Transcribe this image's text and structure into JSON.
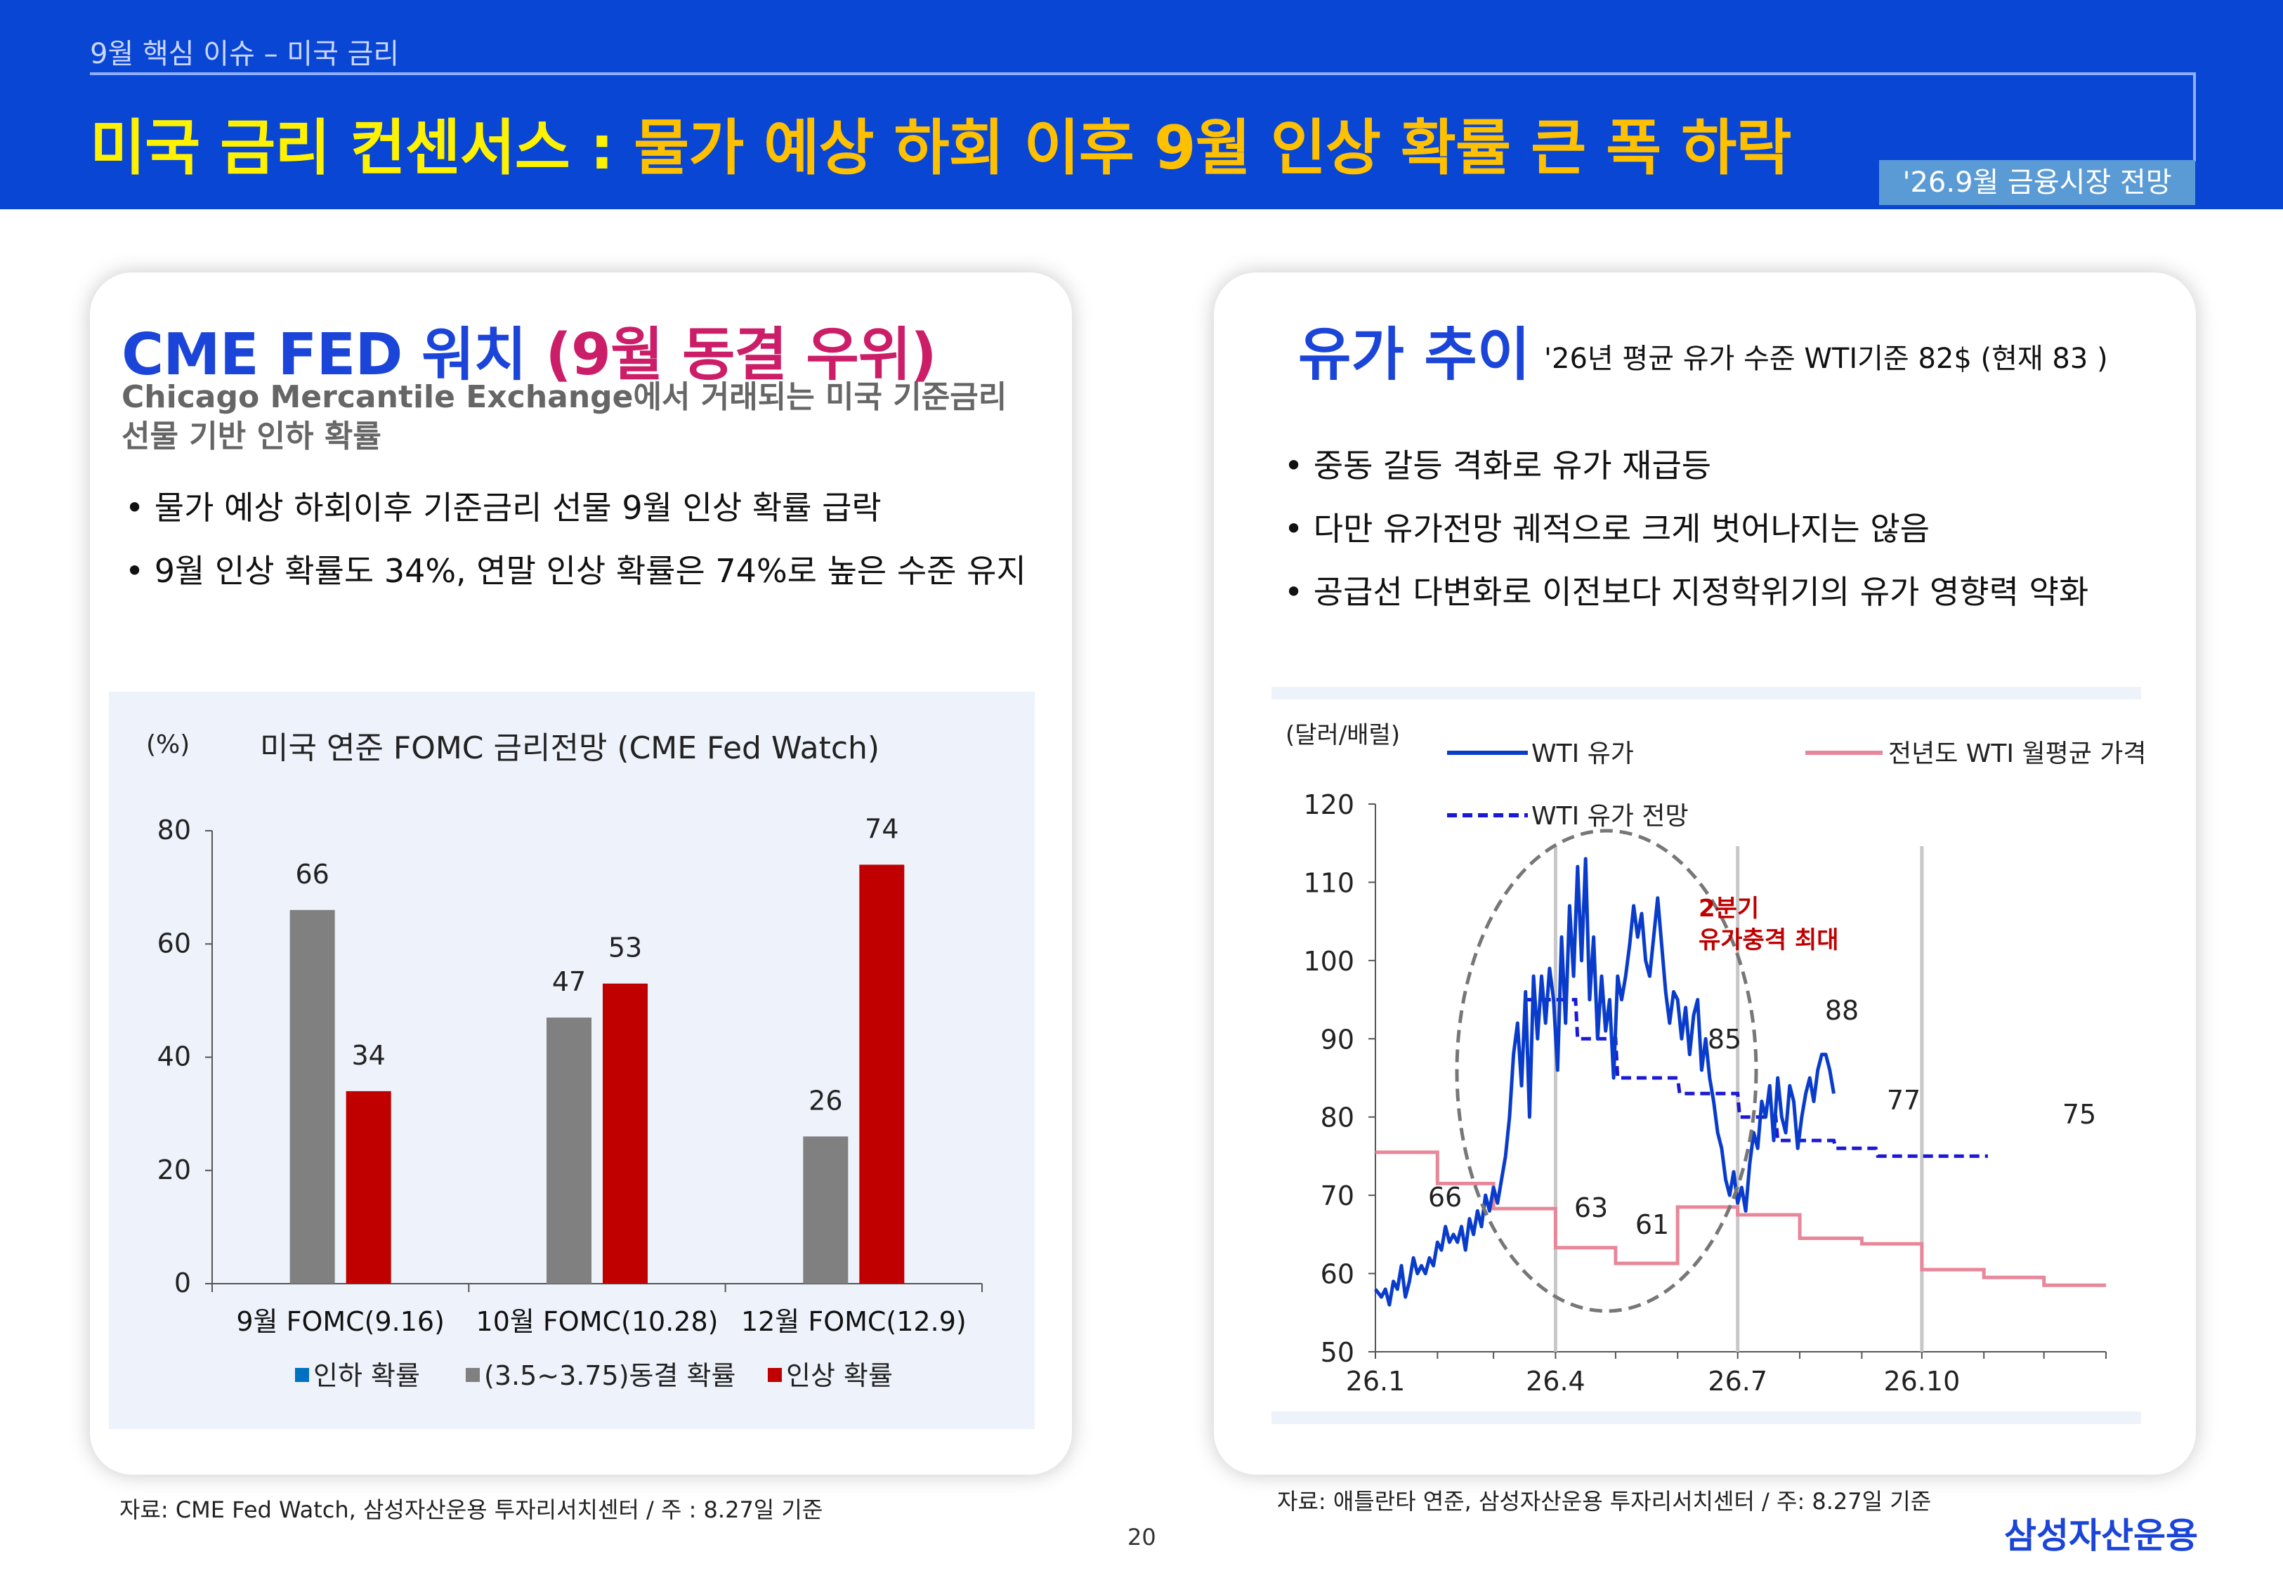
{
  "header": {
    "breadcrumb": "9월 핵심 이슈 – 미국 금리",
    "title_part1": "미국 금리 컨센서스 : ",
    "title_part2": "물가 예상 하회 이후 9월 인상 확률 큰 폭 하락",
    "badge": "'26.9월 금융시장 전망"
  },
  "left_panel": {
    "title_part1": "CME FED 워치 ",
    "title_part2": "(9월 동결 우위)",
    "description": "Chicago Mercantile Exchange에서  거래되는 미국 기준금리 선물 기반 인하 확률",
    "bullets": [
      "물가 예상 하회이후 기준금리 선물 9월 인상 확률 급락",
      "9월 인상 확률도 34%, 연말 인상 확률은 74%로 높은 수준 유지"
    ],
    "source": "자료: CME Fed Watch, 삼성자산운용 투자리서치센터 / 주 : 8.27일 기준"
  },
  "right_panel": {
    "title": "유가 추이",
    "avg_note": "'26년 평균 유가 수준 WTI기준 82$ (현재 83 )",
    "bullets": [
      "중동 갈등 격화로 유가 재급등",
      "다만 유가전망 궤적으로 크게 벗어나지는 않음",
      "공급선 다변화로 이전보다 지정학위기의 유가 영향력 약화"
    ],
    "source": "자료: 애틀란타 연준, 삼성자산운용 투자리서치센터 / 주: 8.27일 기준"
  },
  "footer": {
    "page_number": "20",
    "logo": "삼성자산운용"
  },
  "colors": {
    "brand_blue": "#0946d4",
    "title_yellow": "#fff200",
    "title_orange": "#ffc000",
    "accent_pink": "#cc1d68",
    "hold_gray": "#808080",
    "hike_red": "#c00000",
    "cut_blue": "#0070c0",
    "wti_blue": "#0a3ccc",
    "prev_pink": "#e8879a"
  },
  "chart_data": [
    {
      "type": "bar",
      "title": "미국 연준 FOMC 금리전망 (CME Fed Watch)",
      "ylabel": "(%)",
      "ylim": [
        0,
        80
      ],
      "yticks": [
        "0",
        "20",
        "40",
        "60",
        "80"
      ],
      "categories": [
        "9월 FOMC(9.16)",
        "10월 FOMC(10.28)",
        "12월 FOMC(12.9)"
      ],
      "series": [
        {
          "name": "인하 확률",
          "values": [
            0,
            0,
            0
          ]
        },
        {
          "name": "(3.5~3.75)동결 확률",
          "values": [
            66,
            47,
            26
          ]
        },
        {
          "name": "인상 확률",
          "values": [
            34,
            53,
            74
          ]
        }
      ],
      "legend": "bottom"
    },
    {
      "type": "line",
      "ylabel": "(달러/배럴)",
      "ylim": [
        50,
        120
      ],
      "yticks": [
        "50",
        "60",
        "70",
        "80",
        "90",
        "100",
        "110",
        "120"
      ],
      "xticks": [
        "26.1",
        "26.4",
        "26.7",
        "26.10"
      ],
      "legend": "top",
      "annotation": "2분기\n유가충격 최대",
      "labels": [
        "66",
        "63",
        "61",
        "85",
        "88",
        "77",
        "75"
      ],
      "series": [
        {
          "name": "WTI 유가",
          "values": [
            [
              0,
              58
            ],
            [
              3,
              57
            ],
            [
              5,
              58
            ],
            [
              7,
              56
            ],
            [
              9,
              59
            ],
            [
              11,
              58
            ],
            [
              13,
              61
            ],
            [
              15,
              57
            ],
            [
              17,
              59
            ],
            [
              19,
              62
            ],
            [
              21,
              60
            ],
            [
              23,
              61
            ],
            [
              25,
              60
            ],
            [
              27,
              62
            ],
            [
              29,
              61
            ],
            [
              31,
              64
            ],
            [
              33,
              63
            ],
            [
              35,
              66
            ],
            [
              37,
              64
            ],
            [
              39,
              65
            ],
            [
              41,
              64
            ],
            [
              43,
              66
            ],
            [
              45,
              63
            ],
            [
              47,
              67
            ],
            [
              49,
              65
            ],
            [
              51,
              68
            ],
            [
              53,
              66
            ],
            [
              55,
              70
            ],
            [
              57,
              68
            ],
            [
              59,
              71
            ],
            [
              61,
              69
            ],
            [
              63,
              72
            ],
            [
              65,
              75
            ],
            [
              67,
              80
            ],
            [
              69,
              88
            ],
            [
              71,
              92
            ],
            [
              73,
              84
            ],
            [
              75,
              96
            ],
            [
              77,
              80
            ],
            [
              79,
              98
            ],
            [
              81,
              90
            ],
            [
              83,
              98
            ],
            [
              85,
              92
            ],
            [
              87,
              99
            ],
            [
              89,
              95
            ],
            [
              91,
              86
            ],
            [
              93,
              103
            ],
            [
              95,
              92
            ],
            [
              97,
              107
            ],
            [
              99,
              98
            ],
            [
              101,
              112
            ],
            [
              103,
              100
            ],
            [
              105,
              113
            ],
            [
              107,
              95
            ],
            [
              109,
              103
            ],
            [
              111,
              90
            ],
            [
              113,
              98
            ],
            [
              115,
              91
            ],
            [
              117,
              95
            ],
            [
              119,
              85
            ],
            [
              121,
              98
            ],
            [
              123,
              95
            ],
            [
              125,
              98
            ],
            [
              127,
              102
            ],
            [
              129,
              107
            ],
            [
              131,
              103
            ],
            [
              133,
              106
            ],
            [
              135,
              100
            ],
            [
              137,
              98
            ],
            [
              139,
              103
            ],
            [
              141,
              108
            ],
            [
              143,
              102
            ],
            [
              145,
              96
            ],
            [
              147,
              92
            ],
            [
              149,
              96
            ],
            [
              151,
              95
            ],
            [
              153,
              90
            ],
            [
              155,
              94
            ],
            [
              157,
              88
            ],
            [
              159,
              93
            ],
            [
              161,
              95
            ],
            [
              163,
              86
            ],
            [
              165,
              90
            ],
            [
              167,
              85
            ],
            [
              169,
              82
            ],
            [
              171,
              78
            ],
            [
              173,
              76
            ],
            [
              175,
              72
            ],
            [
              177,
              70
            ],
            [
              179,
              73
            ],
            [
              181,
              69
            ],
            [
              183,
              71
            ],
            [
              185,
              68
            ],
            [
              187,
              74
            ],
            [
              189,
              78
            ],
            [
              191,
              76
            ],
            [
              193,
              82
            ],
            [
              195,
              80
            ],
            [
              197,
              84
            ],
            [
              199,
              77
            ],
            [
              201,
              85
            ],
            [
              203,
              80
            ],
            [
              205,
              78
            ],
            [
              207,
              84
            ],
            [
              209,
              82
            ],
            [
              211,
              76
            ],
            [
              213,
              80
            ],
            [
              215,
              83
            ],
            [
              217,
              85
            ],
            [
              219,
              82
            ],
            [
              221,
              86
            ],
            [
              223,
              88
            ],
            [
              225,
              88
            ],
            [
              227,
              86
            ],
            [
              229,
              83
            ]
          ]
        },
        {
          "name": "WTI 유가 전망",
          "values": [
            [
              75,
              95
            ],
            [
              100,
              95
            ],
            [
              101,
              90
            ],
            [
              120,
              90
            ],
            [
              121,
              85
            ],
            [
              151,
              85
            ],
            [
              152,
              83
            ],
            [
              181,
              83
            ],
            [
              182,
              80
            ],
            [
              200,
              80
            ],
            [
              201,
              77
            ],
            [
              229,
              77
            ],
            [
              230,
              76
            ],
            [
              250,
              76
            ],
            [
              251,
              75
            ],
            [
              306,
              75
            ]
          ]
        },
        {
          "name": "전년도 WTI 월평균 가격",
          "values": [
            [
              0,
              75.5
            ],
            [
              31,
              75.5
            ],
            [
              31,
              71.5
            ],
            [
              59,
              71.5
            ],
            [
              59,
              68.3
            ],
            [
              90,
              68.3
            ],
            [
              90,
              63.3
            ],
            [
              120,
              63.3
            ],
            [
              120,
              61.3
            ],
            [
              151,
              61.3
            ],
            [
              151,
              68.5
            ],
            [
              181,
              68.5
            ],
            [
              181,
              67.5
            ],
            [
              212,
              67.5
            ],
            [
              212,
              64.5
            ],
            [
              243,
              64.5
            ],
            [
              243,
              63.8
            ],
            [
              273,
              63.8
            ],
            [
              273,
              60.5
            ],
            [
              304,
              60.5
            ],
            [
              304,
              59.5
            ],
            [
              334,
              59.5
            ],
            [
              334,
              58.5
            ],
            [
              365,
              58.5
            ]
          ]
        }
      ]
    }
  ]
}
